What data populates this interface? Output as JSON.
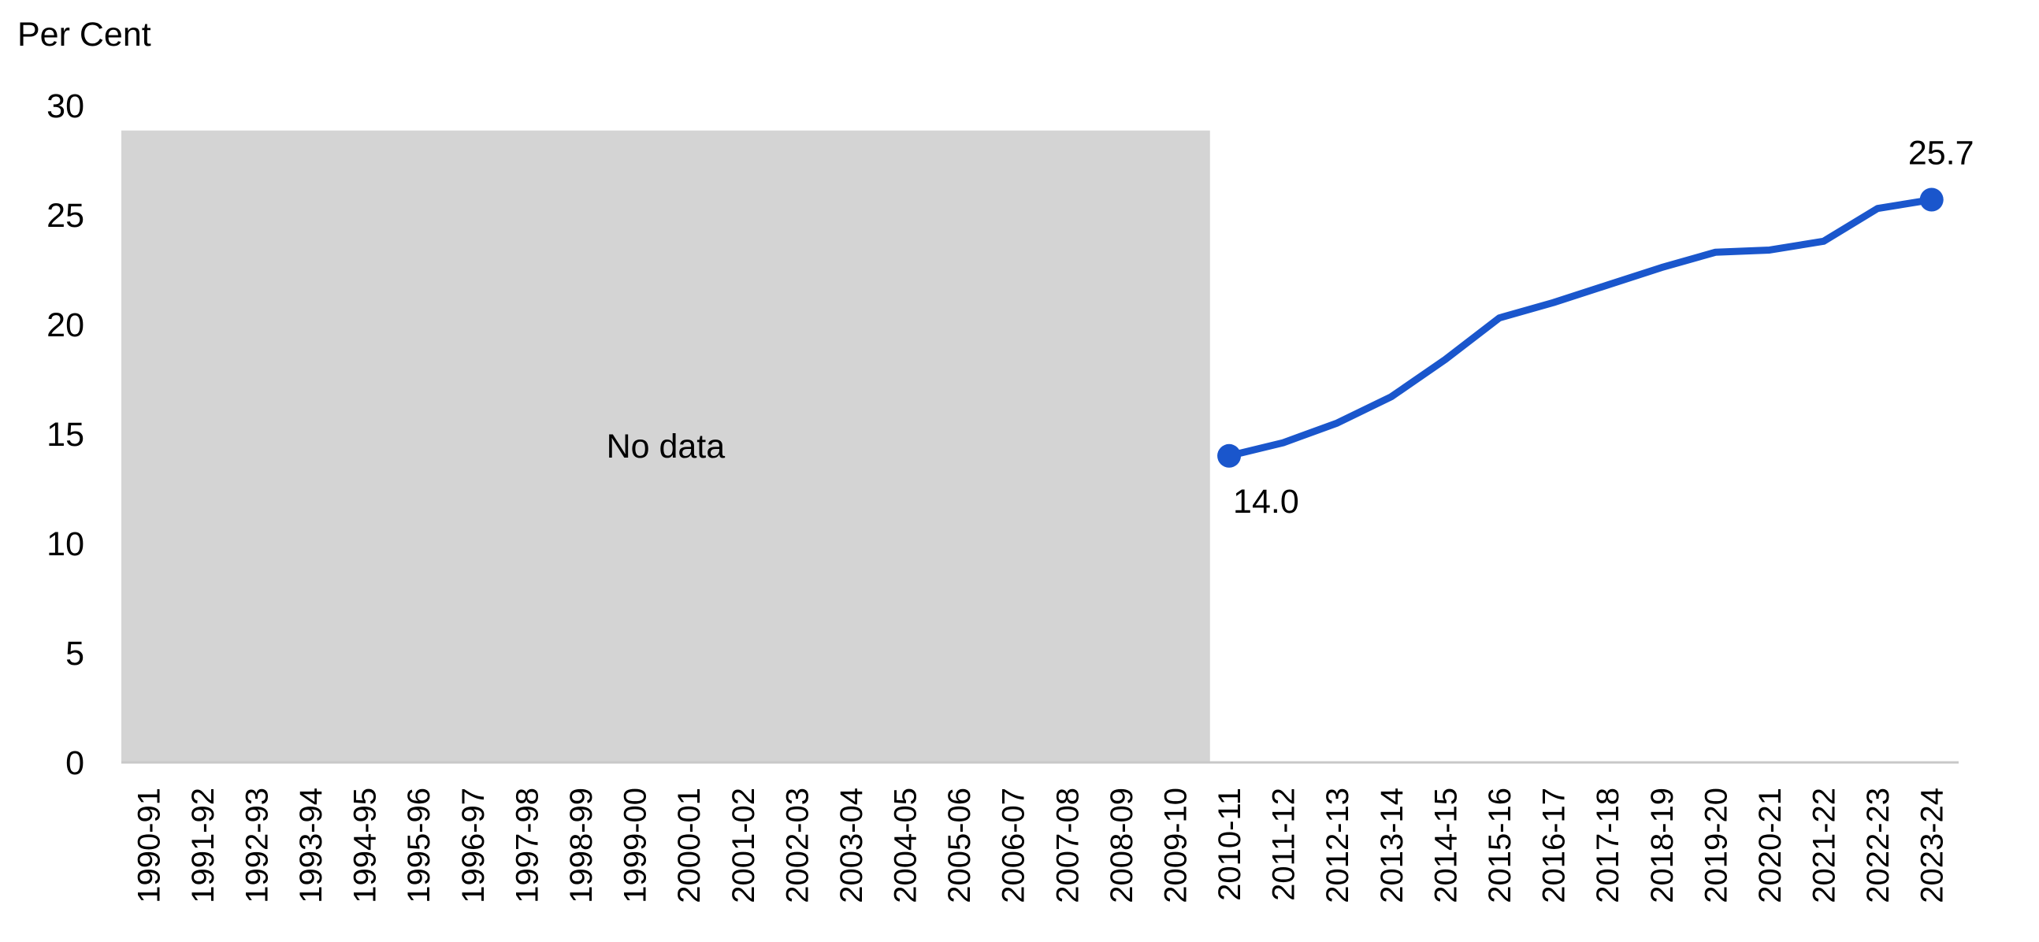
{
  "chart_data": {
    "type": "line",
    "y_label": "Per Cent",
    "annotation": "No data",
    "categories": [
      "1990-91",
      "1991-92",
      "1992-93",
      "1993-94",
      "1994-95",
      "1995-96",
      "1996-97",
      "1997-98",
      "1998-99",
      "1999-00",
      "2000-01",
      "2001-02",
      "2002-03",
      "2003-04",
      "2004-05",
      "2005-06",
      "2006-07",
      "2007-08",
      "2008-09",
      "2009-10",
      "2010-11",
      "2011-12",
      "2012-13",
      "2013-14",
      "2014-15",
      "2015-16",
      "2016-17",
      "2017-18",
      "2018-19",
      "2019-20",
      "2020-21",
      "2021-22",
      "2022-23",
      "2023-24"
    ],
    "values": [
      null,
      null,
      null,
      null,
      null,
      null,
      null,
      null,
      null,
      null,
      null,
      null,
      null,
      null,
      null,
      null,
      null,
      null,
      null,
      null,
      14.0,
      14.6,
      15.5,
      16.7,
      18.4,
      20.3,
      21.0,
      21.8,
      22.6,
      23.3,
      23.4,
      23.8,
      25.3,
      25.7
    ],
    "value_labels": [
      null,
      null,
      null,
      null,
      null,
      null,
      null,
      null,
      null,
      null,
      null,
      null,
      null,
      null,
      null,
      null,
      null,
      null,
      null,
      null,
      "14.0",
      null,
      null,
      null,
      null,
      null,
      null,
      null,
      null,
      null,
      null,
      null,
      null,
      "25.7"
    ],
    "color": "#1a56cc",
    "ylim": [
      0,
      30
    ],
    "yticks": [
      0,
      5,
      10,
      15,
      20,
      25,
      30
    ],
    "grid": false
  }
}
